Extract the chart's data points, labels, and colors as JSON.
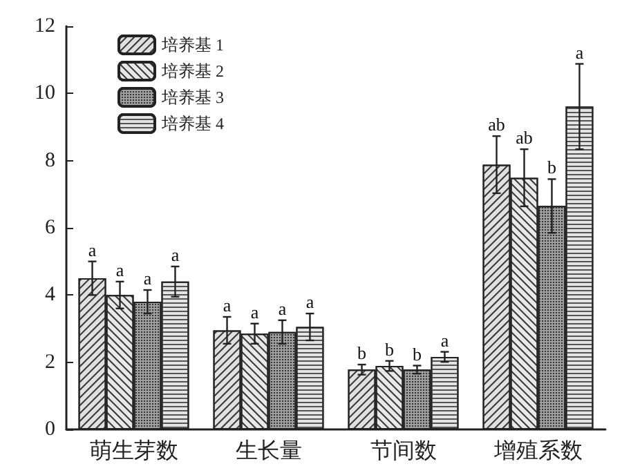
{
  "chart_data": {
    "type": "bar",
    "categories": [
      "萌生芽数",
      "生长量",
      "节间数",
      "增殖系数"
    ],
    "series": [
      {
        "name": "培养基 1",
        "color": "#e0e0e0",
        "values": [
          4.5,
          2.95,
          1.78,
          7.88
        ],
        "errors": [
          0.5,
          0.4,
          0.15,
          0.85
        ],
        "value_labels": [
          "a",
          "a",
          "b",
          "ab"
        ]
      },
      {
        "name": "培养基 2",
        "color": "#e8e8e8",
        "values": [
          4.0,
          2.85,
          1.89,
          7.49
        ],
        "errors": [
          0.4,
          0.3,
          0.15,
          0.85
        ],
        "value_labels": [
          "a",
          "a",
          "b",
          "ab"
        ]
      },
      {
        "name": "培养基 3",
        "color": "#a0a0a0",
        "values": [
          3.8,
          2.9,
          1.78,
          6.65
        ],
        "errors": [
          0.35,
          0.35,
          0.12,
          0.8
        ],
        "value_labels": [
          "a",
          "a",
          "b",
          "b"
        ]
      },
      {
        "name": "培养基 4",
        "color": "#e4e4e4",
        "values": [
          4.4,
          3.05,
          2.16,
          9.61
        ],
        "errors": [
          0.45,
          0.4,
          0.15,
          1.27
        ],
        "value_labels": [
          "a",
          "a",
          "a",
          "a"
        ]
      }
    ],
    "ylim": [
      0,
      12
    ],
    "yticks": [
      0,
      2,
      4,
      6,
      8,
      10,
      12
    ],
    "grid": false,
    "legend": "top left"
  }
}
